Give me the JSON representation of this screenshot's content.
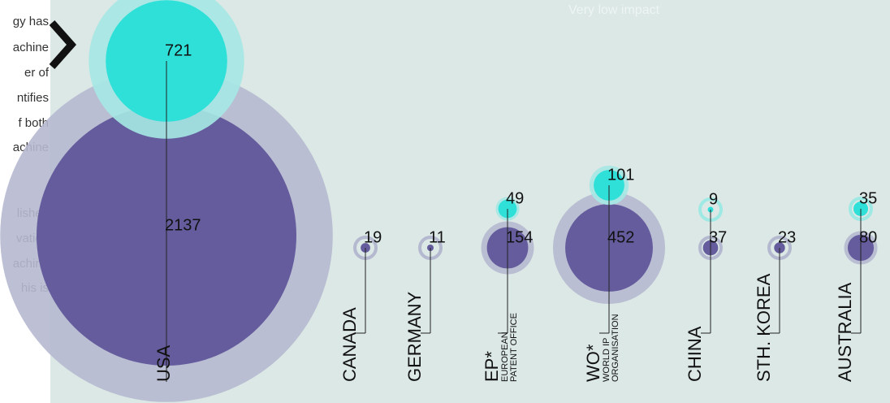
{
  "header": "Very low impact",
  "left_text": [
    "gy has",
    "achine",
    "er of",
    "ntifies",
    "f both",
    "achine",
    "lished",
    "vation",
    "achine",
    "his is"
  ],
  "chart_data": {
    "type": "bubble",
    "categories": [
      "USA",
      "CANADA",
      "GERMANY",
      "EP*",
      "WO*",
      "CHINA",
      "STH. KOREA",
      "AUSTRALIA"
    ],
    "category_notes": [
      null,
      null,
      null,
      [
        "EUROPEAN",
        "PATENT OFFICE"
      ],
      [
        "WORLD IP",
        "ORGANISATION"
      ],
      null,
      null,
      null
    ],
    "series": [
      {
        "color": "#2ee0d8",
        "values": [
          721,
          null,
          null,
          49,
          101,
          9,
          null,
          35
        ]
      },
      {
        "color": "#645c9c",
        "values": [
          2137,
          19,
          11,
          154,
          452,
          37,
          23,
          80
        ]
      }
    ]
  }
}
